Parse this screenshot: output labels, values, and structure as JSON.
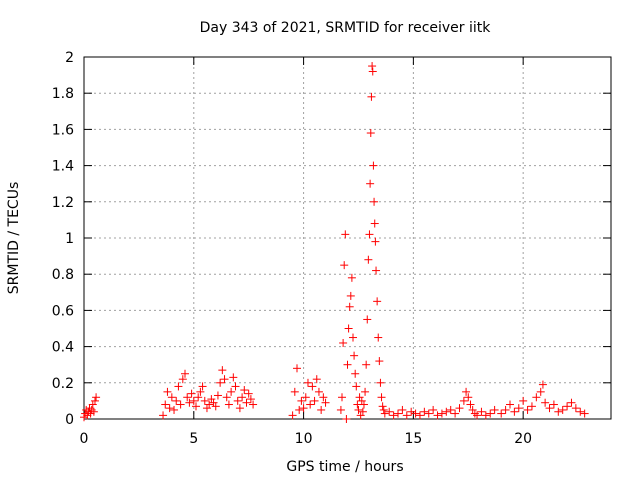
{
  "chart_data": {
    "type": "scatter",
    "title": "Day 343 of 2021, SRMTID for receiver iitk",
    "xlabel": "GPS time / hours",
    "ylabel": "SRMTID / TECUs",
    "xlim": [
      0,
      24
    ],
    "ylim": [
      0,
      2
    ],
    "xticks": [
      0,
      5,
      10,
      15,
      20
    ],
    "xtick_labels": [
      "0",
      "5",
      "10",
      "15",
      "20"
    ],
    "yticks": [
      0,
      0.2,
      0.4,
      0.6,
      0.8,
      1,
      1.2,
      1.4,
      1.6,
      1.8,
      2
    ],
    "ytick_labels": [
      "0",
      "0.2",
      "0.4",
      "0.6",
      "0.8",
      "1",
      "1.2",
      "1.4",
      "1.6",
      "1.8",
      "2"
    ],
    "grid": true,
    "marker": "+",
    "color": "#ff0000",
    "series": [
      {
        "name": "SRMTID",
        "x": [
          0.0,
          0.05,
          0.1,
          0.15,
          0.2,
          0.25,
          0.3,
          0.35,
          0.4,
          0.45,
          0.5,
          0.55,
          3.6,
          3.7,
          3.8,
          3.9,
          4.0,
          4.1,
          4.2,
          4.3,
          4.4,
          4.5,
          4.6,
          4.7,
          4.8,
          4.9,
          5.0,
          5.1,
          5.2,
          5.3,
          5.4,
          5.5,
          5.6,
          5.7,
          5.8,
          5.9,
          6.0,
          6.1,
          6.2,
          6.3,
          6.4,
          6.5,
          6.6,
          6.7,
          6.8,
          6.9,
          7.0,
          7.1,
          7.2,
          7.3,
          7.4,
          7.5,
          7.6,
          7.7,
          9.5,
          9.6,
          9.7,
          9.8,
          9.9,
          10.0,
          10.1,
          10.2,
          10.3,
          10.4,
          10.5,
          10.6,
          10.7,
          10.8,
          10.9,
          11.0,
          11.7,
          11.75,
          11.8,
          11.85,
          11.9,
          11.95,
          12.0,
          12.05,
          12.1,
          12.15,
          12.2,
          12.25,
          12.3,
          12.35,
          12.4,
          12.45,
          12.5,
          12.55,
          12.6,
          12.65,
          12.7,
          12.75,
          12.8,
          12.85,
          12.9,
          12.95,
          13.0,
          13.03,
          13.06,
          13.09,
          13.12,
          13.15,
          13.18,
          13.21,
          13.24,
          13.27,
          13.3,
          13.35,
          13.4,
          13.45,
          13.5,
          13.55,
          13.6,
          13.65,
          13.7,
          13.9,
          14.1,
          14.3,
          14.5,
          14.7,
          14.9,
          15.1,
          15.3,
          15.5,
          15.7,
          15.9,
          16.1,
          16.3,
          16.5,
          16.7,
          16.9,
          17.1,
          17.3,
          17.4,
          17.5,
          17.6,
          17.7,
          17.8,
          17.9,
          18.1,
          18.3,
          18.5,
          18.7,
          19.0,
          19.2,
          19.4,
          19.6,
          19.8,
          20.0,
          20.2,
          20.4,
          20.6,
          20.8,
          20.9,
          21.0,
          21.2,
          21.4,
          21.6,
          21.8,
          22.0,
          22.2,
          22.4,
          22.6,
          22.8
        ],
        "y": [
          0.01,
          0.03,
          0.05,
          0.02,
          0.04,
          0.06,
          0.03,
          0.05,
          0.08,
          0.04,
          0.1,
          0.12,
          0.02,
          0.08,
          0.15,
          0.06,
          0.12,
          0.05,
          0.1,
          0.18,
          0.08,
          0.22,
          0.25,
          0.12,
          0.09,
          0.14,
          0.1,
          0.07,
          0.12,
          0.15,
          0.18,
          0.1,
          0.06,
          0.08,
          0.11,
          0.09,
          0.07,
          0.13,
          0.2,
          0.27,
          0.22,
          0.12,
          0.08,
          0.15,
          0.23,
          0.18,
          0.1,
          0.06,
          0.12,
          0.16,
          0.09,
          0.14,
          0.11,
          0.08,
          0.02,
          0.15,
          0.28,
          0.05,
          0.1,
          0.06,
          0.12,
          0.2,
          0.08,
          0.18,
          0.1,
          0.22,
          0.15,
          0.05,
          0.12,
          0.09,
          0.05,
          0.12,
          0.42,
          0.85,
          1.02,
          0.0,
          0.3,
          0.5,
          0.62,
          0.68,
          0.78,
          0.45,
          0.35,
          0.25,
          0.18,
          0.08,
          0.05,
          0.12,
          0.02,
          0.1,
          0.04,
          0.08,
          0.15,
          0.3,
          0.55,
          0.88,
          1.02,
          1.3,
          1.58,
          1.78,
          1.95,
          1.92,
          1.4,
          1.2,
          1.08,
          0.98,
          0.82,
          0.65,
          0.45,
          0.32,
          0.2,
          0.12,
          0.07,
          0.05,
          0.03,
          0.04,
          0.02,
          0.03,
          0.05,
          0.02,
          0.04,
          0.03,
          0.02,
          0.04,
          0.03,
          0.05,
          0.02,
          0.03,
          0.04,
          0.05,
          0.03,
          0.06,
          0.1,
          0.15,
          0.12,
          0.08,
          0.05,
          0.03,
          0.02,
          0.04,
          0.02,
          0.03,
          0.05,
          0.03,
          0.05,
          0.08,
          0.04,
          0.06,
          0.1,
          0.05,
          0.07,
          0.12,
          0.15,
          0.19,
          0.09,
          0.06,
          0.08,
          0.04,
          0.05,
          0.07,
          0.09,
          0.06,
          0.04,
          0.03
        ]
      }
    ]
  }
}
